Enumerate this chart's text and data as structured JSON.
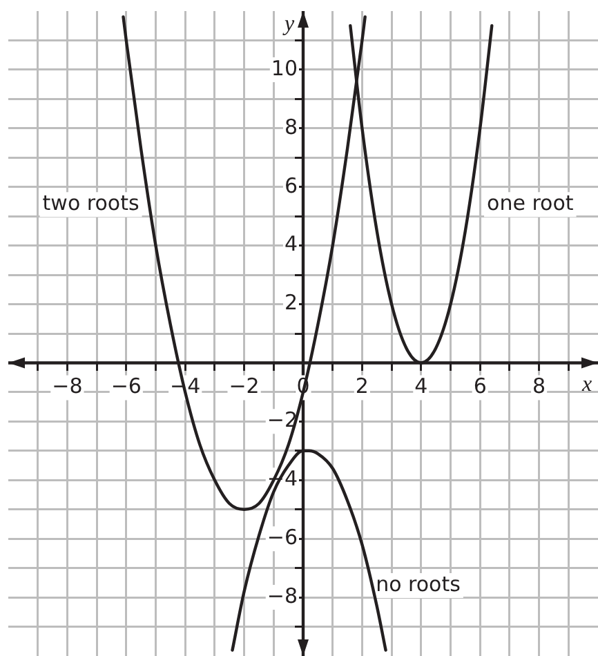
{
  "chart_data": {
    "type": "line",
    "xlabel": "x",
    "ylabel": "y",
    "xlim": [
      -10,
      10
    ],
    "ylim": [
      -10,
      12
    ],
    "xticks": [
      {
        "value": -9,
        "label": null
      },
      -8,
      {
        "value": -7,
        "label": null
      },
      -6,
      {
        "value": -5,
        "label": null
      },
      -4,
      {
        "value": -3,
        "label": null
      },
      -2,
      {
        "value": -1,
        "label": null
      },
      0,
      {
        "value": 1,
        "label": null
      },
      2,
      {
        "value": 3,
        "label": null
      },
      4,
      {
        "value": 5,
        "label": null
      },
      6,
      {
        "value": 7,
        "label": null
      },
      8,
      {
        "value": 9,
        "label": null
      }
    ],
    "yticks": [
      {
        "value": -9,
        "label": null
      },
      -8,
      {
        "value": -7,
        "label": null
      },
      -6,
      {
        "value": -5,
        "label": null
      },
      -4,
      {
        "value": -3,
        "label": null
      },
      -2,
      {
        "value": -1,
        "label": null
      },
      {
        "value": 0,
        "label": null
      },
      {
        "value": 1,
        "label": null
      },
      2,
      {
        "value": 3,
        "label": null
      },
      4,
      {
        "value": 5,
        "label": null
      },
      6,
      {
        "value": 7,
        "label": null
      },
      8,
      {
        "value": 9,
        "label": null
      },
      10,
      {
        "value": 11,
        "label": null
      }
    ],
    "grid": true,
    "legend": false,
    "marker": "none",
    "line_style": "solid",
    "series": [
      {
        "color": "#231f20",
        "x": [
          -6.1,
          -6,
          -5.5,
          -5,
          -4.5,
          -4,
          -3.5,
          -3,
          -2.5,
          -2,
          -1.5,
          -1,
          -0.5,
          0,
          0.5,
          1,
          1.5,
          2,
          2.1
        ],
        "values": [
          11.8,
          11,
          7.3,
          4,
          1.3,
          -1,
          -2.8,
          -4,
          -4.8,
          -5,
          -4.8,
          -4,
          -2.8,
          -1,
          1.3,
          4,
          7.3,
          11,
          11.8
        ]
      },
      {
        "color": "#231f20",
        "x": [
          -2.4,
          -2,
          -1.5,
          -1,
          -0.5,
          0,
          0.2,
          0.5,
          1,
          1.5,
          2,
          2.5,
          2.8
        ],
        "values": [
          -9.8,
          -7.8,
          -5.9,
          -4.4,
          -3.5,
          -3,
          -3,
          -3.1,
          -3.6,
          -4.7,
          -6.2,
          -8.3,
          -9.8
        ]
      },
      {
        "color": "#231f20",
        "x": [
          1.6,
          2,
          2.5,
          3,
          3.5,
          4,
          4.5,
          5,
          5.5,
          6,
          6.4
        ],
        "values": [
          11.5,
          8,
          4.5,
          2,
          0.5,
          0,
          0.5,
          2,
          4.5,
          8,
          11.5
        ]
      }
    ],
    "annotations": [
      "two roots",
      "one root",
      "no roots"
    ]
  }
}
